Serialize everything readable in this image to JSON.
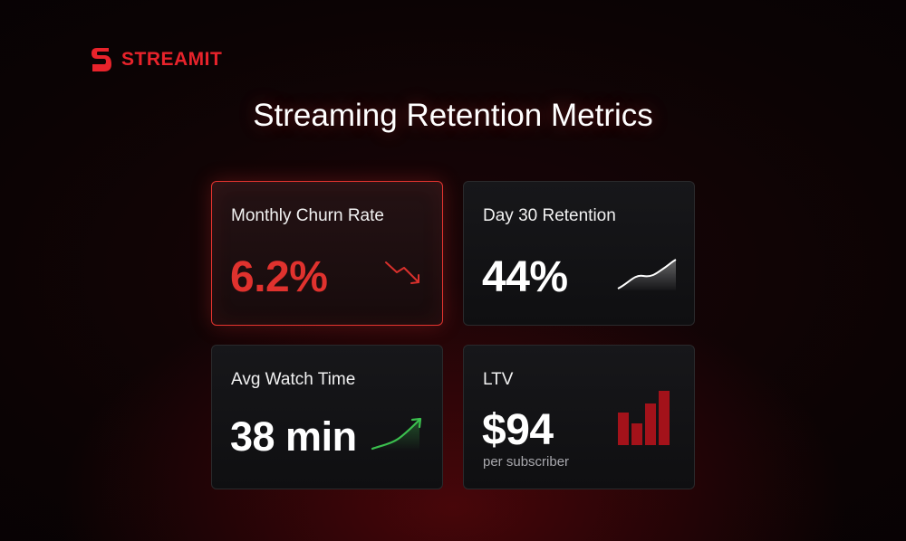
{
  "brand": {
    "name": "STREAMIT",
    "logo_icon": "s-logo-icon",
    "color": "#e8232b"
  },
  "title": "Streaming Retention Metrics",
  "cards": [
    {
      "label": "Monthly Churn Rate",
      "value": "6.2%",
      "icon": "trend-down-arrow-icon",
      "highlighted": true,
      "accent": "#e0322e"
    },
    {
      "label": "Day 30 Retention",
      "value": "44%",
      "icon": "area-sparkline-icon"
    },
    {
      "label": "Avg Watch Time",
      "value": "38 min",
      "icon": "trend-up-arrow-icon",
      "accent": "#3bbf4e"
    },
    {
      "label": "LTV",
      "value": "$94",
      "sub": "per subscriber",
      "icon": "bar-chart-icon",
      "accent": "#b01218"
    }
  ]
}
